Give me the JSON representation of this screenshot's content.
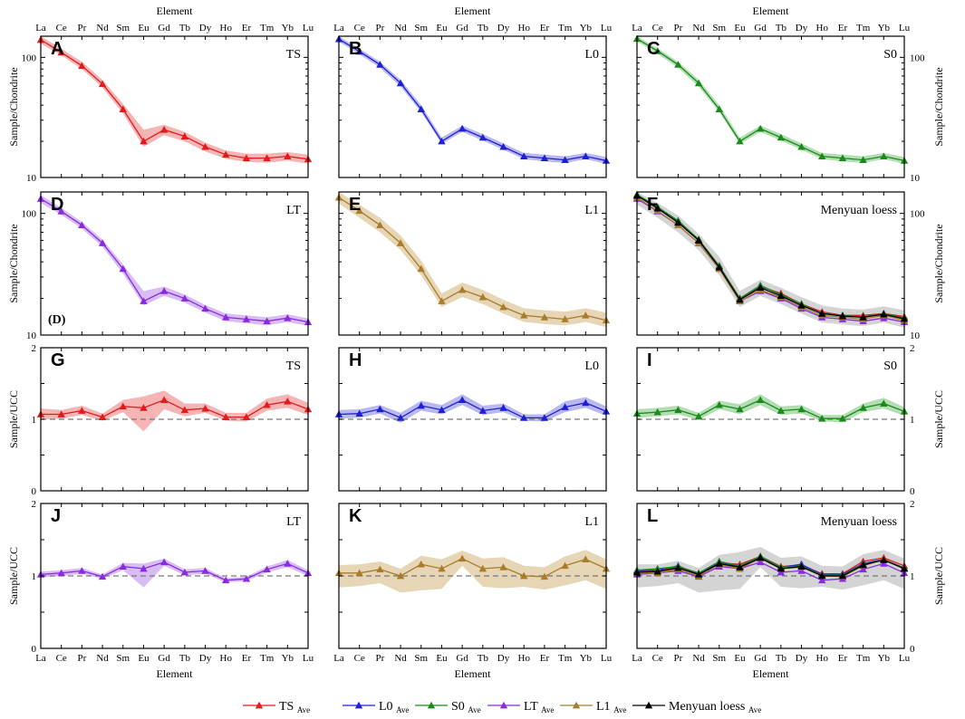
{
  "figure": {
    "element_axis_title": "Element",
    "elements": [
      "La",
      "Ce",
      "Pr",
      "Nd",
      "Sm",
      "Eu",
      "Gd",
      "Tb",
      "Dy",
      "Ho",
      "Er",
      "Tm",
      "Yb",
      "Lu"
    ],
    "colors": {
      "TS": "#e41a1c",
      "L0": "#1f1fd6",
      "S0": "#1a8a1a",
      "LT": "#8a2be2",
      "L1": "#a87c2a",
      "Menyuan": "#000000"
    },
    "band_colors": {
      "TS": "#f5b5b5",
      "L0": "#b9b9f0",
      "S0": "#b3deb3",
      "LT": "#d8bdf5",
      "L1": "#e6d6b5",
      "Menyuan": "#cccccc"
    }
  },
  "legend": [
    {
      "key": "TS",
      "label": "TS",
      "sub": "Ave"
    },
    {
      "key": "L0",
      "label": "L0",
      "sub": "Ave"
    },
    {
      "key": "S0",
      "label": "S0",
      "sub": "Ave"
    },
    {
      "key": "LT",
      "label": "LT",
      "sub": "Ave"
    },
    {
      "key": "L1",
      "label": "L1",
      "sub": "Ave"
    },
    {
      "key": "Menyuan",
      "label": "Menyuan loess",
      "sub": "Ave"
    }
  ],
  "chart_data": [
    {
      "id": "A",
      "type": "line",
      "title": "TS",
      "scale": "log",
      "ylim": [
        10,
        150
      ],
      "yticks": [
        "10",
        "100"
      ],
      "ylabel": "Sample/Chondrite",
      "series": [
        {
          "name": "TS",
          "values": [
            140,
            110,
            85,
            60,
            37,
            20,
            25,
            22,
            18,
            15.5,
            14.5,
            14.5,
            15,
            14.2
          ],
          "lower": [
            130,
            104,
            80,
            56,
            34,
            18,
            22.5,
            20,
            16.5,
            14.3,
            13.5,
            13.3,
            13.8,
            13
          ],
          "upper": [
            150,
            118,
            92,
            65,
            41,
            25,
            27.5,
            24,
            19.5,
            16.8,
            15.8,
            15.8,
            16.3,
            15.5
          ]
        }
      ]
    },
    {
      "id": "B",
      "type": "line",
      "title": "L0",
      "scale": "log",
      "ylim": [
        10,
        150
      ],
      "yticks": [],
      "ylabel": "",
      "series": [
        {
          "name": "L0",
          "values": [
            142,
            112,
            87,
            61,
            37,
            20,
            25.5,
            21.5,
            18,
            15,
            14.5,
            14,
            15,
            13.8
          ],
          "lower": [
            135,
            106,
            82,
            57,
            35,
            19,
            24,
            20.3,
            17,
            14.2,
            13.6,
            13.2,
            14.2,
            13
          ],
          "upper": [
            150,
            118,
            92,
            65,
            40,
            21.5,
            27,
            23,
            19.2,
            16,
            15.5,
            15,
            16,
            14.8
          ]
        }
      ]
    },
    {
      "id": "C",
      "type": "line",
      "title": "S0",
      "scale": "log",
      "ylim": [
        10,
        150
      ],
      "yticks": [
        "10",
        "100"
      ],
      "ylabel": "Sample/Chondrite",
      "yaxis": "right",
      "series": [
        {
          "name": "S0",
          "values": [
            143,
            113,
            87,
            61,
            37,
            20,
            25.5,
            21.5,
            18,
            15,
            14.5,
            14,
            15,
            13.8
          ],
          "lower": [
            136,
            107,
            82,
            57,
            35,
            19,
            24,
            20.3,
            17,
            14.2,
            13.6,
            13.2,
            14.2,
            13
          ],
          "upper": [
            150,
            119,
            92,
            65,
            40,
            21.5,
            27,
            23,
            19.2,
            16,
            15.5,
            15,
            16,
            14.8
          ]
        }
      ]
    },
    {
      "id": "D",
      "type": "line",
      "title": "LT",
      "scale": "log",
      "ylim": [
        10,
        150
      ],
      "yticks": [
        "10",
        "100"
      ],
      "ylabel": "Sample/Chondrite",
      "inner_note": "(D)",
      "series": [
        {
          "name": "LT",
          "values": [
            132,
            104,
            80,
            57,
            35,
            19,
            23,
            20,
            16.5,
            14,
            13.5,
            13,
            13.8,
            12.8
          ],
          "lower": [
            122,
            97,
            75,
            53,
            32,
            17.5,
            21,
            18.5,
            15.3,
            13,
            12.5,
            12,
            12.8,
            11.9
          ],
          "upper": [
            142,
            111,
            85,
            61,
            38,
            23,
            25,
            21.5,
            17.7,
            15,
            14.5,
            14,
            14.8,
            13.7
          ]
        }
      ]
    },
    {
      "id": "E",
      "type": "line",
      "title": "L1",
      "scale": "log",
      "ylim": [
        10,
        150
      ],
      "yticks": [],
      "ylabel": "",
      "series": [
        {
          "name": "L1",
          "values": [
            135,
            105,
            80,
            57,
            35,
            19,
            23.5,
            20.5,
            17,
            14.5,
            14,
            13.5,
            14.5,
            13.2
          ],
          "lower": [
            120,
            92,
            70,
            50,
            31,
            17,
            20.5,
            18,
            15,
            12.8,
            12.3,
            12,
            12.8,
            11.6
          ],
          "upper": [
            150,
            118,
            92,
            66,
            41,
            22,
            27,
            23.5,
            19.5,
            16.6,
            16,
            15.6,
            16.6,
            15.3
          ]
        }
      ]
    },
    {
      "id": "F",
      "type": "line",
      "title": "Menyuan loess",
      "scale": "log",
      "ylim": [
        10,
        150
      ],
      "yticks": [
        "10",
        "100"
      ],
      "ylabel": "Sample/Chondrite",
      "yaxis": "right",
      "series": [
        {
          "name": "TS",
          "values": [
            140,
            110,
            85,
            60,
            37,
            20,
            25,
            22,
            18,
            15.5,
            14.5,
            14.5,
            15,
            14.2
          ]
        },
        {
          "name": "L0",
          "values": [
            142,
            112,
            87,
            61,
            37,
            20,
            25.5,
            21.5,
            18,
            15,
            14.5,
            14,
            15,
            13.8
          ]
        },
        {
          "name": "S0",
          "values": [
            143,
            113,
            87,
            61,
            37,
            20,
            25.5,
            21.5,
            18,
            15,
            14.5,
            14,
            15,
            13.8
          ]
        },
        {
          "name": "LT",
          "values": [
            132,
            104,
            80,
            57,
            35,
            19,
            23,
            20,
            16.5,
            14,
            13.5,
            13,
            13.8,
            12.8
          ]
        },
        {
          "name": "L1",
          "values": [
            135,
            105,
            80,
            57,
            35,
            19,
            23.5,
            20.5,
            17,
            14.5,
            14,
            13.5,
            14.5,
            13.2
          ]
        },
        {
          "name": "Menyuan",
          "values": [
            140,
            110,
            84,
            60,
            36,
            19.5,
            24.5,
            21,
            17.5,
            15,
            14.3,
            14,
            14.8,
            13.6
          ],
          "lower": [
            118,
            92,
            70,
            50,
            31,
            17,
            21,
            18,
            15,
            12.7,
            12.2,
            11.8,
            12.7,
            11.5
          ],
          "upper": [
            150,
            122,
            96,
            68,
            44,
            23,
            28.5,
            24.5,
            20.5,
            17.5,
            16.5,
            16.2,
            17.2,
            16
          ]
        }
      ]
    },
    {
      "id": "G",
      "type": "line",
      "title": "TS",
      "scale": "linear",
      "ylim": [
        0,
        2
      ],
      "yticks": [
        "0",
        "1",
        "2"
      ],
      "ylabel": "Sample/UCC",
      "reference": 1,
      "series": [
        {
          "name": "TS",
          "values": [
            1.07,
            1.07,
            1.12,
            1.03,
            1.18,
            1.16,
            1.27,
            1.13,
            1.15,
            1.03,
            1.03,
            1.2,
            1.25,
            1.14
          ],
          "lower": [
            1.0,
            1.01,
            1.06,
            0.98,
            1.1,
            0.83,
            1.14,
            1.04,
            1.09,
            0.98,
            0.97,
            1.12,
            1.16,
            1.06
          ],
          "upper": [
            1.15,
            1.13,
            1.19,
            1.08,
            1.27,
            1.32,
            1.4,
            1.22,
            1.22,
            1.09,
            1.09,
            1.29,
            1.35,
            1.23
          ]
        }
      ]
    },
    {
      "id": "H",
      "type": "line",
      "title": "L0",
      "scale": "linear",
      "ylim": [
        0,
        2
      ],
      "yticks": [],
      "ylabel": "",
      "reference": 1,
      "series": [
        {
          "name": "L0",
          "values": [
            1.07,
            1.08,
            1.14,
            1.02,
            1.19,
            1.13,
            1.27,
            1.12,
            1.16,
            1.02,
            1.02,
            1.17,
            1.23,
            1.11
          ],
          "lower": [
            1.01,
            1.02,
            1.08,
            0.95,
            1.12,
            1.07,
            1.2,
            1.06,
            1.1,
            0.98,
            0.97,
            1.1,
            1.16,
            1.05
          ],
          "upper": [
            1.13,
            1.14,
            1.2,
            1.09,
            1.26,
            1.2,
            1.35,
            1.19,
            1.22,
            1.07,
            1.07,
            1.25,
            1.31,
            1.18
          ]
        }
      ]
    },
    {
      "id": "I",
      "type": "line",
      "title": "S0",
      "scale": "linear",
      "ylim": [
        0,
        2
      ],
      "yticks": [
        "0",
        "1",
        "2"
      ],
      "ylabel": "Sample/UCC",
      "yaxis": "right",
      "reference": 1,
      "series": [
        {
          "name": "S0",
          "values": [
            1.08,
            1.1,
            1.13,
            1.04,
            1.2,
            1.14,
            1.27,
            1.12,
            1.14,
            1.01,
            1.01,
            1.16,
            1.22,
            1.11
          ],
          "lower": [
            1.02,
            1.04,
            1.07,
            0.99,
            1.14,
            1.07,
            1.2,
            1.06,
            1.08,
            0.97,
            0.96,
            1.1,
            1.15,
            1.05
          ],
          "upper": [
            1.14,
            1.16,
            1.19,
            1.09,
            1.26,
            1.21,
            1.35,
            1.18,
            1.2,
            1.06,
            1.06,
            1.22,
            1.3,
            1.17
          ]
        }
      ]
    },
    {
      "id": "J",
      "type": "line",
      "title": "LT",
      "scale": "linear",
      "ylim": [
        0,
        2
      ],
      "yticks": [
        "0",
        "1",
        "2"
      ],
      "ylabel": "Sample/UCC",
      "reference": 1,
      "series": [
        {
          "name": "LT",
          "values": [
            1.02,
            1.04,
            1.07,
            0.99,
            1.13,
            1.1,
            1.19,
            1.05,
            1.07,
            0.94,
            0.96,
            1.09,
            1.17,
            1.04
          ],
          "lower": [
            0.98,
            1.0,
            1.03,
            0.96,
            1.08,
            0.84,
            1.14,
            1.01,
            1.03,
            0.91,
            0.93,
            1.05,
            1.12,
            1.0
          ],
          "upper": [
            1.06,
            1.08,
            1.11,
            1.02,
            1.18,
            1.17,
            1.24,
            1.09,
            1.11,
            0.97,
            0.99,
            1.13,
            1.22,
            1.08
          ]
        }
      ]
    },
    {
      "id": "K",
      "type": "line",
      "title": "L1",
      "scale": "linear",
      "ylim": [
        0,
        2
      ],
      "yticks": [],
      "ylabel": "",
      "reference": 1,
      "series": [
        {
          "name": "L1",
          "values": [
            1.04,
            1.04,
            1.09,
            1.0,
            1.16,
            1.1,
            1.24,
            1.1,
            1.12,
            1.0,
            0.99,
            1.14,
            1.23,
            1.1
          ],
          "lower": [
            0.84,
            0.86,
            0.9,
            0.77,
            0.8,
            0.82,
            1.14,
            0.85,
            0.83,
            0.85,
            0.81,
            0.87,
            0.94,
            0.82
          ],
          "upper": [
            1.15,
            1.16,
            1.2,
            1.1,
            1.28,
            1.23,
            1.35,
            1.24,
            1.26,
            1.14,
            1.12,
            1.27,
            1.36,
            1.23
          ]
        }
      ]
    },
    {
      "id": "L",
      "type": "line",
      "title": "Menyuan loess",
      "scale": "linear",
      "ylim": [
        0,
        2
      ],
      "yticks": [
        "0",
        "1",
        "2"
      ],
      "ylabel": "Sample/UCC",
      "yaxis": "right",
      "reference": 1,
      "series": [
        {
          "name": "TS",
          "values": [
            1.07,
            1.07,
            1.12,
            1.03,
            1.18,
            1.16,
            1.27,
            1.13,
            1.15,
            1.03,
            1.03,
            1.2,
            1.25,
            1.14
          ]
        },
        {
          "name": "L0",
          "values": [
            1.07,
            1.08,
            1.14,
            1.02,
            1.19,
            1.13,
            1.27,
            1.12,
            1.16,
            1.02,
            1.02,
            1.17,
            1.23,
            1.11
          ]
        },
        {
          "name": "S0",
          "values": [
            1.08,
            1.1,
            1.13,
            1.04,
            1.2,
            1.14,
            1.27,
            1.12,
            1.14,
            1.01,
            1.01,
            1.16,
            1.22,
            1.11
          ]
        },
        {
          "name": "LT",
          "values": [
            1.02,
            1.04,
            1.07,
            0.99,
            1.13,
            1.1,
            1.19,
            1.05,
            1.07,
            0.94,
            0.96,
            1.09,
            1.17,
            1.04
          ]
        },
        {
          "name": "L1",
          "values": [
            1.04,
            1.04,
            1.09,
            1.0,
            1.16,
            1.1,
            1.24,
            1.1,
            1.12,
            1.0,
            0.99,
            1.14,
            1.23,
            1.1
          ]
        },
        {
          "name": "Menyuan",
          "values": [
            1.05,
            1.06,
            1.11,
            1.02,
            1.17,
            1.12,
            1.25,
            1.1,
            1.13,
            1.0,
            1.0,
            1.15,
            1.22,
            1.1
          ],
          "lower": [
            0.84,
            0.86,
            0.9,
            0.77,
            0.8,
            0.82,
            1.12,
            0.85,
            0.83,
            0.85,
            0.81,
            0.87,
            0.94,
            0.82
          ],
          "upper": [
            1.16,
            1.16,
            1.21,
            1.11,
            1.29,
            1.33,
            1.4,
            1.25,
            1.27,
            1.14,
            1.13,
            1.3,
            1.36,
            1.24
          ]
        }
      ]
    }
  ]
}
